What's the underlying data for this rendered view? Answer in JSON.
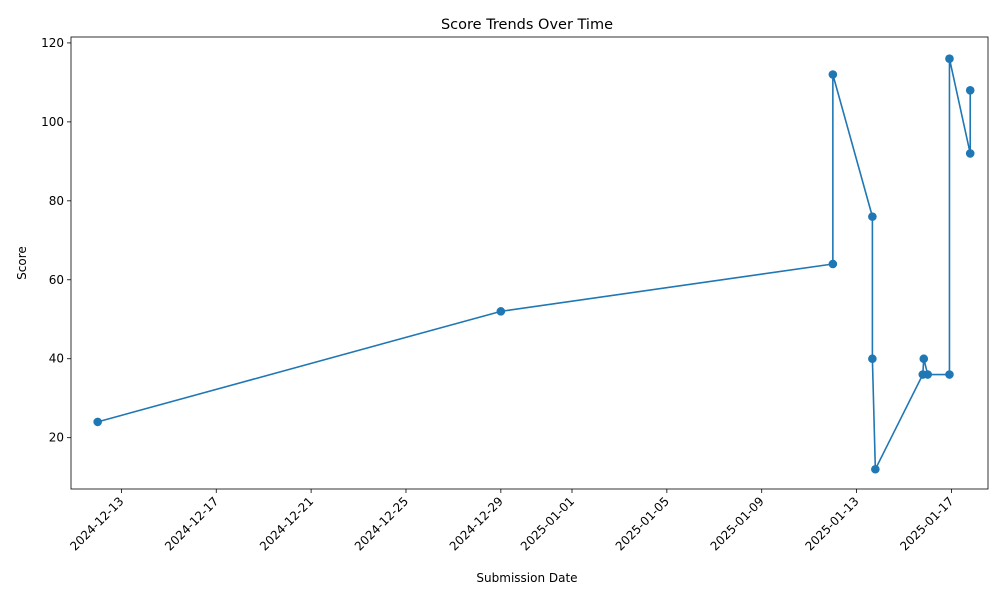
{
  "chart_data": {
    "type": "line",
    "title": "Score Trends Over Time",
    "xlabel": "Submission Date",
    "ylabel": "Score",
    "x_ticks": [
      "2024-12-13",
      "2024-12-17",
      "2024-12-21",
      "2024-12-25",
      "2024-12-29",
      "2025-01-01",
      "2025-01-05",
      "2025-01-09",
      "2025-01-13",
      "2025-01-17"
    ],
    "y_ticks": [
      20,
      40,
      60,
      80,
      100,
      120
    ],
    "xlim": [
      "2024-12-10T21:00",
      "2025-01-18T13:00"
    ],
    "ylim": [
      7,
      121.5
    ],
    "grid": false,
    "series": [
      {
        "color": "#1f77b4",
        "marker": "circle",
        "points": [
          {
            "x": "2024-12-12T00:00",
            "y": 24
          },
          {
            "x": "2024-12-29T00:00",
            "y": 52
          },
          {
            "x": "2025-01-12T00:00",
            "y": 64
          },
          {
            "x": "2025-01-12T00:00",
            "y": 112
          },
          {
            "x": "2025-01-13T16:00",
            "y": 76
          },
          {
            "x": "2025-01-13T16:00",
            "y": 40
          },
          {
            "x": "2025-01-13T19:00",
            "y": 12
          },
          {
            "x": "2025-01-15T19:00",
            "y": 36
          },
          {
            "x": "2025-01-15T20:00",
            "y": 40
          },
          {
            "x": "2025-01-16T00:00",
            "y": 36
          },
          {
            "x": "2025-01-16T22:00",
            "y": 36
          },
          {
            "x": "2025-01-16T22:00",
            "y": 116
          },
          {
            "x": "2025-01-17T19:00",
            "y": 92
          },
          {
            "x": "2025-01-17T19:00",
            "y": 108
          }
        ]
      }
    ]
  }
}
